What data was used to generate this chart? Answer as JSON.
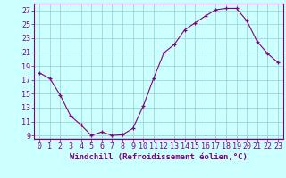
{
  "x": [
    0,
    1,
    2,
    3,
    4,
    5,
    6,
    7,
    8,
    9,
    10,
    11,
    12,
    13,
    14,
    15,
    16,
    17,
    18,
    19,
    20,
    21,
    22,
    23
  ],
  "y": [
    18.0,
    17.2,
    14.8,
    11.8,
    10.5,
    9.0,
    9.5,
    9.0,
    9.1,
    10.0,
    13.2,
    17.2,
    20.9,
    22.1,
    24.2,
    25.2,
    26.2,
    27.1,
    27.3,
    27.3,
    25.5,
    22.5,
    20.8,
    19.5
  ],
  "line_color": "#800080",
  "marker": "+",
  "marker_color": "#800080",
  "background_color": "#ccffff",
  "grid_color": "#99cccc",
  "xlabel": "Windchill (Refroidissement éolien,°C)",
  "xlabel_fontsize": 6.5,
  "ylim": [
    8.5,
    28
  ],
  "xlim": [
    -0.5,
    23.5
  ],
  "yticks": [
    9,
    11,
    13,
    15,
    17,
    19,
    21,
    23,
    25,
    27
  ],
  "xticks": [
    0,
    1,
    2,
    3,
    4,
    5,
    6,
    7,
    8,
    9,
    10,
    11,
    12,
    13,
    14,
    15,
    16,
    17,
    18,
    19,
    20,
    21,
    22,
    23
  ],
  "tick_fontsize": 6.0,
  "tick_color": "#800080",
  "axis_color": "#800080",
  "spine_color": "#800080",
  "linewidth": 0.8
}
